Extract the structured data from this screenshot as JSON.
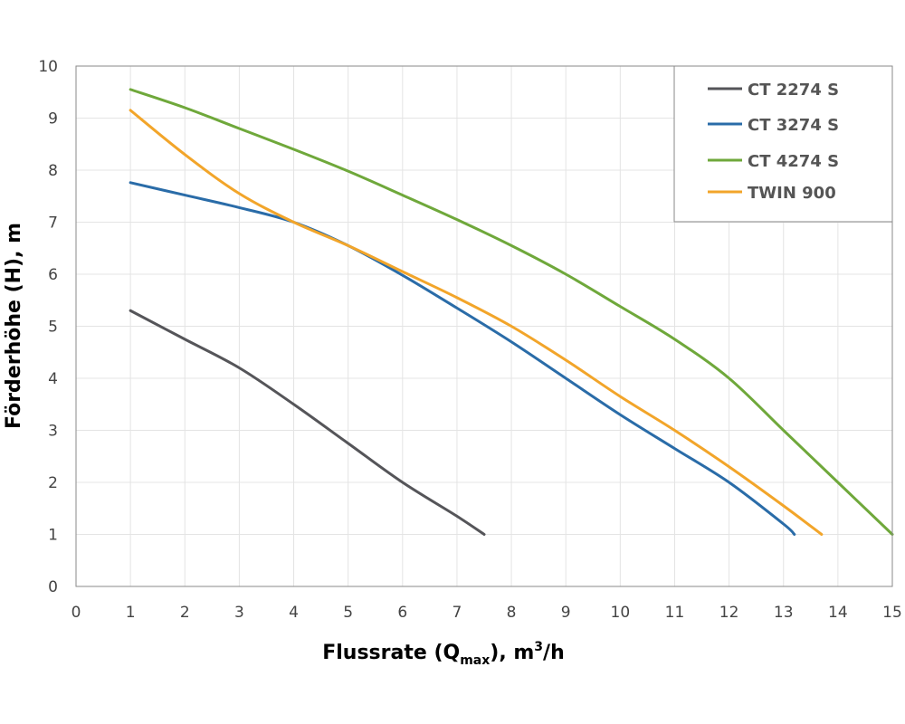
{
  "chart_data": {
    "type": "line",
    "xlabel": {
      "prefix": "Flussrate (Q",
      "sub": "max",
      "middle": "), m",
      "sup": "3",
      "suffix": "/h"
    },
    "ylabel": "Förderhöhe (H), m",
    "xlim": [
      0,
      15
    ],
    "ylim": [
      0,
      10
    ],
    "xticks": [
      "0",
      "1",
      "2",
      "3",
      "4",
      "5",
      "6",
      "7",
      "8",
      "9",
      "10",
      "11",
      "12",
      "13",
      "14",
      "15"
    ],
    "yticks": [
      "0",
      "1",
      "2",
      "3",
      "4",
      "5",
      "6",
      "7",
      "8",
      "9",
      "10"
    ],
    "grid": true,
    "legend_position": "top-right",
    "series": [
      {
        "name": "CT 2274 S",
        "color": "#555559",
        "x": [
          1,
          2,
          3,
          4,
          5,
          6,
          7,
          7.5
        ],
        "y": [
          5.3,
          4.75,
          4.2,
          3.5,
          2.75,
          2.0,
          1.35,
          1.0
        ]
      },
      {
        "name": "CT 3274 S",
        "color": "#2a6ca8",
        "x": [
          1,
          2,
          3,
          4,
          5,
          6,
          7,
          8,
          9,
          10,
          11,
          12,
          13,
          13.2
        ],
        "y": [
          7.76,
          7.52,
          7.28,
          7.0,
          6.55,
          5.98,
          5.35,
          4.7,
          4.0,
          3.3,
          2.65,
          2.0,
          1.2,
          1.0
        ]
      },
      {
        "name": "CT 4274 S",
        "color": "#6fa83b",
        "x": [
          1,
          2,
          3,
          4,
          5,
          6,
          7,
          8,
          9,
          10,
          11,
          12,
          13,
          14,
          15
        ],
        "y": [
          9.55,
          9.2,
          8.8,
          8.4,
          7.98,
          7.52,
          7.05,
          6.55,
          6.0,
          5.38,
          4.75,
          4.0,
          3.0,
          2.0,
          1.0
        ]
      },
      {
        "name": "TWIN 900",
        "color": "#f2a52a",
        "x": [
          1,
          2,
          3,
          4,
          5,
          6,
          7,
          8,
          9,
          10,
          11,
          12,
          13,
          13.7
        ],
        "y": [
          9.15,
          8.3,
          7.55,
          7.0,
          6.55,
          6.05,
          5.55,
          5.0,
          4.35,
          3.65,
          3.0,
          2.3,
          1.55,
          1.0
        ]
      }
    ]
  }
}
